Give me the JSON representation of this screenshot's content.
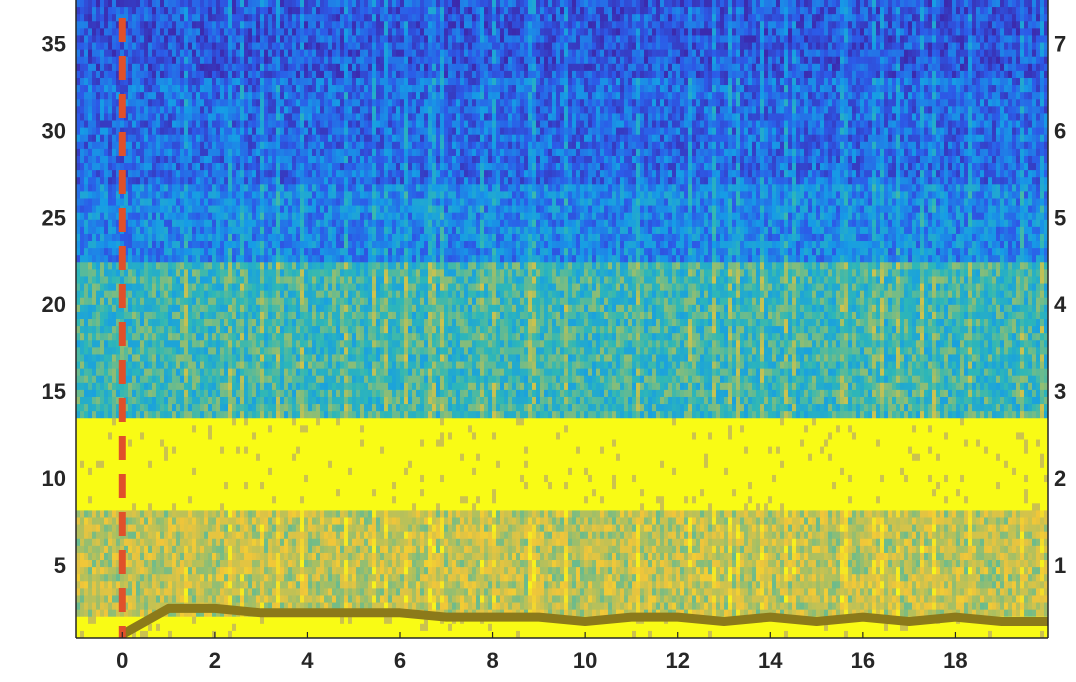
{
  "chart_data": {
    "type": "heatmap",
    "title": "",
    "xlabel": "",
    "ylabel": "",
    "y2label": "",
    "xlim": [
      -1,
      20
    ],
    "ylim": [
      0.8,
      37.5
    ],
    "y2lim": [
      0.16,
      7.5
    ],
    "x_ticks": [
      0,
      2,
      4,
      6,
      8,
      10,
      12,
      14,
      16,
      18
    ],
    "y_ticks": [
      5,
      10,
      15,
      20,
      25,
      30,
      35
    ],
    "y2_ticks": [
      1,
      2,
      3,
      4,
      5,
      6,
      7
    ],
    "grid": false,
    "colormap": [
      "#3d26a8",
      "#2c5be8",
      "#169ce6",
      "#2eb7b7",
      "#a6bf64",
      "#f0c53a",
      "#f9fb15"
    ],
    "bands": [
      {
        "y_range": [
          0.8,
          2.0
        ],
        "level": "high"
      },
      {
        "y_range": [
          2.0,
          8.0
        ],
        "level": "mixed"
      },
      {
        "y_range": [
          8.0,
          13.5
        ],
        "level": "high"
      },
      {
        "y_range": [
          13.5,
          22.5
        ],
        "level": "medium"
      },
      {
        "y_range": [
          22.5,
          37.5
        ],
        "level": "low"
      }
    ],
    "marker": {
      "x": 0,
      "style": "dashed",
      "color": "#e0502a"
    },
    "series": [
      {
        "axis": "right",
        "color": "#8c7a1a",
        "x": [
          0,
          1,
          2,
          3,
          4,
          5,
          6,
          7,
          8,
          9,
          10,
          11,
          12,
          13,
          14,
          15,
          16,
          17,
          18,
          19,
          20
        ],
        "values": [
          0.2,
          0.5,
          0.5,
          0.45,
          0.45,
          0.45,
          0.45,
          0.4,
          0.4,
          0.4,
          0.35,
          0.4,
          0.4,
          0.35,
          0.4,
          0.35,
          0.4,
          0.35,
          0.4,
          0.35,
          0.35
        ]
      }
    ]
  }
}
